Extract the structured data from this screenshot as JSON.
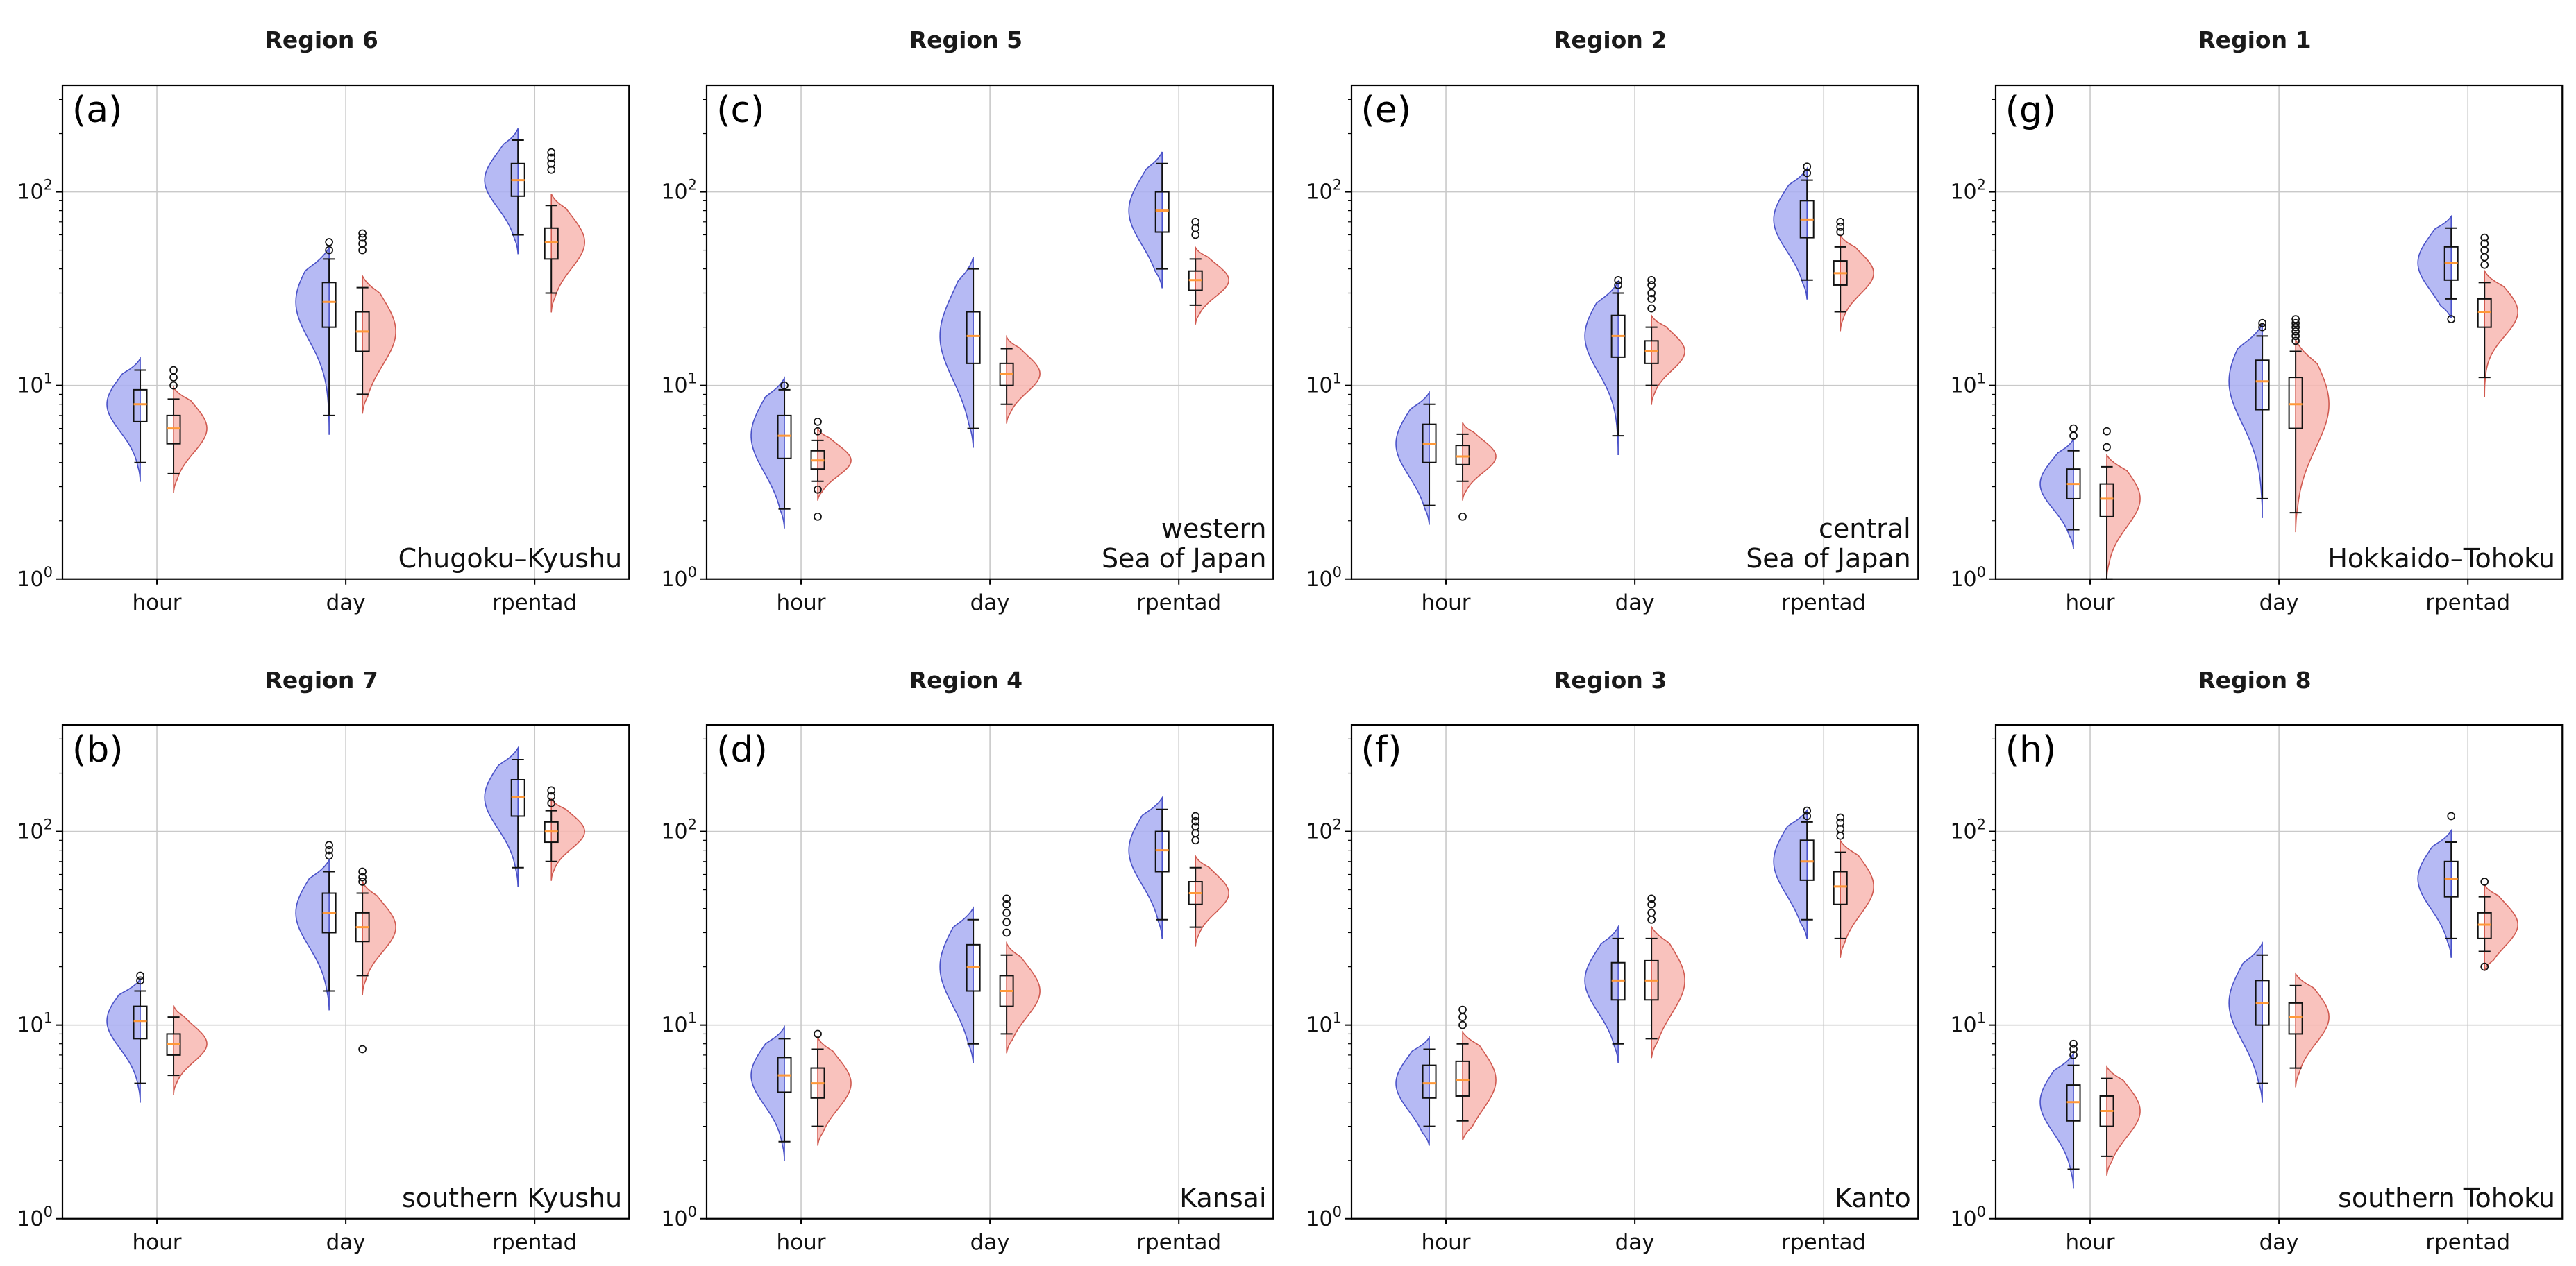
{
  "chart_data": {
    "type": "violin-box",
    "yscale": "log",
    "ylim": [
      1,
      355
    ],
    "yticks": [
      1,
      10,
      100
    ],
    "xlabel": "",
    "ylabel": "",
    "grid": true,
    "legend": "none",
    "categories": [
      "hour",
      "day",
      "rpentad"
    ],
    "series": [
      {
        "key": "blue",
        "fill": "#a9aef2",
        "edge": "#4a52c8"
      },
      {
        "key": "red",
        "fill": "#f8b7b2",
        "edge": "#d05a50"
      }
    ],
    "median_color": "#ff9838",
    "box_color": "#111111",
    "grid_color": "#c9c9c9",
    "box_order": [
      "whisker_low",
      "q1",
      "median",
      "q3",
      "whisker_high"
    ],
    "panels": [
      {
        "panel_label": "(a)",
        "title": "Region 6",
        "annotation": "Chugoku–Kyushu",
        "groups": [
          {
            "category": "hour",
            "blue": {
              "box": [
                4,
                6.5,
                8,
                9.5,
                12
              ],
              "outliers": []
            },
            "red": {
              "box": [
                3.5,
                5,
                6,
                7,
                8.5
              ],
              "outliers": [
                10,
                11,
                12
              ]
            }
          },
          {
            "category": "day",
            "blue": {
              "box": [
                7,
                20,
                27,
                34,
                45
              ],
              "outliers": [
                50,
                55
              ]
            },
            "red": {
              "box": [
                9,
                15,
                19,
                24,
                32
              ],
              "outliers": [
                50,
                54,
                58,
                61
              ]
            }
          },
          {
            "category": "rpentad",
            "blue": {
              "box": [
                60,
                95,
                115,
                140,
                185
              ],
              "outliers": []
            },
            "red": {
              "box": [
                30,
                45,
                55,
                65,
                85
              ],
              "outliers": [
                130,
                140,
                150,
                160
              ]
            }
          }
        ]
      },
      {
        "panel_label": "(c)",
        "title": "Region 5",
        "annotation": "western\nSea of Japan",
        "groups": [
          {
            "category": "hour",
            "blue": {
              "box": [
                2.3,
                4.2,
                5.5,
                7,
                9.5
              ],
              "outliers": [
                10
              ]
            },
            "red": {
              "box": [
                3.2,
                3.7,
                4.1,
                4.6,
                5.2
              ],
              "outliers": [
                2.1,
                2.9,
                5.8,
                6.5
              ]
            }
          },
          {
            "category": "day",
            "blue": {
              "box": [
                6,
                13,
                18,
                24,
                40
              ],
              "outliers": []
            },
            "red": {
              "box": [
                8,
                10,
                11.5,
                13,
                15.5
              ],
              "outliers": []
            }
          },
          {
            "category": "rpentad",
            "blue": {
              "box": [
                40,
                62,
                80,
                100,
                140
              ],
              "outliers": []
            },
            "red": {
              "box": [
                26,
                31,
                35,
                39,
                45
              ],
              "outliers": [
                60,
                65,
                70
              ]
            }
          }
        ]
      },
      {
        "panel_label": "(e)",
        "title": "Region 2",
        "annotation": "central\nSea of Japan",
        "groups": [
          {
            "category": "hour",
            "blue": {
              "box": [
                2.4,
                4,
                5,
                6.3,
                8
              ],
              "outliers": []
            },
            "red": {
              "box": [
                3.2,
                3.9,
                4.3,
                4.9,
                5.6
              ],
              "outliers": [
                2.1
              ]
            }
          },
          {
            "category": "day",
            "blue": {
              "box": [
                5.5,
                14,
                18,
                23,
                30
              ],
              "outliers": [
                33,
                35
              ]
            },
            "red": {
              "box": [
                10,
                13,
                15,
                17,
                20
              ],
              "outliers": [
                25,
                28,
                30,
                33,
                35
              ]
            }
          },
          {
            "category": "rpentad",
            "blue": {
              "box": [
                35,
                58,
                72,
                90,
                115
              ],
              "outliers": [
                125,
                135
              ]
            },
            "red": {
              "box": [
                24,
                33,
                38,
                44,
                52
              ],
              "outliers": [
                62,
                66,
                70
              ]
            }
          }
        ]
      },
      {
        "panel_label": "(g)",
        "title": "Region 1",
        "annotation": "Hokkaido–Tohoku",
        "groups": [
          {
            "category": "hour",
            "blue": {
              "box": [
                1.8,
                2.6,
                3.1,
                3.7,
                4.6
              ],
              "outliers": [
                5.5,
                6
              ]
            },
            "red": {
              "box": [
                1.0,
                2.1,
                2.6,
                3.1,
                3.8
              ],
              "outliers": [
                4.8,
                5.8
              ]
            }
          },
          {
            "category": "day",
            "blue": {
              "box": [
                2.6,
                7.5,
                10.5,
                13.5,
                18
              ],
              "outliers": [
                20,
                21
              ]
            },
            "red": {
              "box": [
                2.2,
                6,
                8,
                11,
                15
              ],
              "outliers": [
                17,
                18,
                19,
                20,
                21,
                22
              ]
            }
          },
          {
            "category": "rpentad",
            "blue": {
              "box": [
                28,
                35,
                43,
                52,
                65
              ],
              "outliers": [
                22
              ]
            },
            "red": {
              "box": [
                11,
                20,
                24,
                28,
                34
              ],
              "outliers": [
                42,
                46,
                50,
                54,
                58
              ]
            }
          }
        ]
      },
      {
        "panel_label": "(b)",
        "title": "Region 7",
        "annotation": "southern Kyushu",
        "groups": [
          {
            "category": "hour",
            "blue": {
              "box": [
                5,
                8.5,
                10.5,
                12.5,
                15
              ],
              "outliers": [
                17,
                18
              ]
            },
            "red": {
              "box": [
                5.5,
                7,
                8,
                9,
                11
              ],
              "outliers": []
            }
          },
          {
            "category": "day",
            "blue": {
              "box": [
                15,
                30,
                38,
                48,
                62
              ],
              "outliers": [
                75,
                80,
                85
              ]
            },
            "red": {
              "box": [
                18,
                27,
                32,
                38,
                48
              ],
              "outliers": [
                7.5,
                55,
                58,
                62
              ]
            }
          },
          {
            "category": "rpentad",
            "blue": {
              "box": [
                65,
                120,
                150,
                185,
                235
              ],
              "outliers": []
            },
            "red": {
              "box": [
                70,
                88,
                100,
                112,
                128
              ],
              "outliers": [
                140,
                152,
                163
              ]
            }
          }
        ]
      },
      {
        "panel_label": "(d)",
        "title": "Region 4",
        "annotation": "Kansai",
        "groups": [
          {
            "category": "hour",
            "blue": {
              "box": [
                2.5,
                4.5,
                5.5,
                6.8,
                8.5
              ],
              "outliers": []
            },
            "red": {
              "box": [
                3,
                4.2,
                5,
                6,
                7.5
              ],
              "outliers": [
                9
              ]
            }
          },
          {
            "category": "day",
            "blue": {
              "box": [
                8,
                15,
                20,
                26,
                35
              ],
              "outliers": []
            },
            "red": {
              "box": [
                9,
                12.5,
                15,
                18,
                23
              ],
              "outliers": [
                30,
                34,
                38,
                42,
                45
              ]
            }
          },
          {
            "category": "rpentad",
            "blue": {
              "box": [
                35,
                62,
                80,
                100,
                130
              ],
              "outliers": []
            },
            "red": {
              "box": [
                32,
                42,
                48,
                55,
                65
              ],
              "outliers": [
                90,
                98,
                106,
                113,
                120
              ]
            }
          }
        ]
      },
      {
        "panel_label": "(f)",
        "title": "Region 3",
        "annotation": "Kanto",
        "groups": [
          {
            "category": "hour",
            "blue": {
              "box": [
                3,
                4.2,
                5,
                6.2,
                7.5
              ],
              "outliers": []
            },
            "red": {
              "box": [
                3.2,
                4.3,
                5.2,
                6.5,
                8
              ],
              "outliers": [
                10,
                11,
                12
              ]
            }
          },
          {
            "category": "day",
            "blue": {
              "box": [
                8,
                13.5,
                17,
                21,
                28
              ],
              "outliers": []
            },
            "red": {
              "box": [
                8.5,
                13.5,
                17,
                21.5,
                28
              ],
              "outliers": [
                35,
                38,
                42,
                45
              ]
            }
          },
          {
            "category": "rpentad",
            "blue": {
              "box": [
                35,
                56,
                70,
                90,
                112
              ],
              "outliers": [
                120,
                128
              ]
            },
            "red": {
              "box": [
                28,
                42,
                52,
                62,
                78
              ],
              "outliers": [
                95,
                103,
                111,
                118
              ]
            }
          }
        ]
      },
      {
        "panel_label": "(h)",
        "title": "Region 8",
        "annotation": "southern Tohoku",
        "groups": [
          {
            "category": "hour",
            "blue": {
              "box": [
                1.8,
                3.2,
                4,
                4.9,
                6.2
              ],
              "outliers": [
                7,
                7.5,
                8
              ]
            },
            "red": {
              "box": [
                2.1,
                3,
                3.6,
                4.3,
                5.3
              ],
              "outliers": []
            }
          },
          {
            "category": "day",
            "blue": {
              "box": [
                5,
                10,
                13,
                17,
                23
              ],
              "outliers": []
            },
            "red": {
              "box": [
                6,
                9,
                11,
                13,
                16
              ],
              "outliers": []
            }
          },
          {
            "category": "rpentad",
            "blue": {
              "box": [
                28,
                46,
                57,
                70,
                88
              ],
              "outliers": [
                120
              ]
            },
            "red": {
              "box": [
                24,
                28,
                33,
                38,
                46
              ],
              "outliers": [
                20,
                55
              ]
            }
          }
        ]
      }
    ]
  }
}
